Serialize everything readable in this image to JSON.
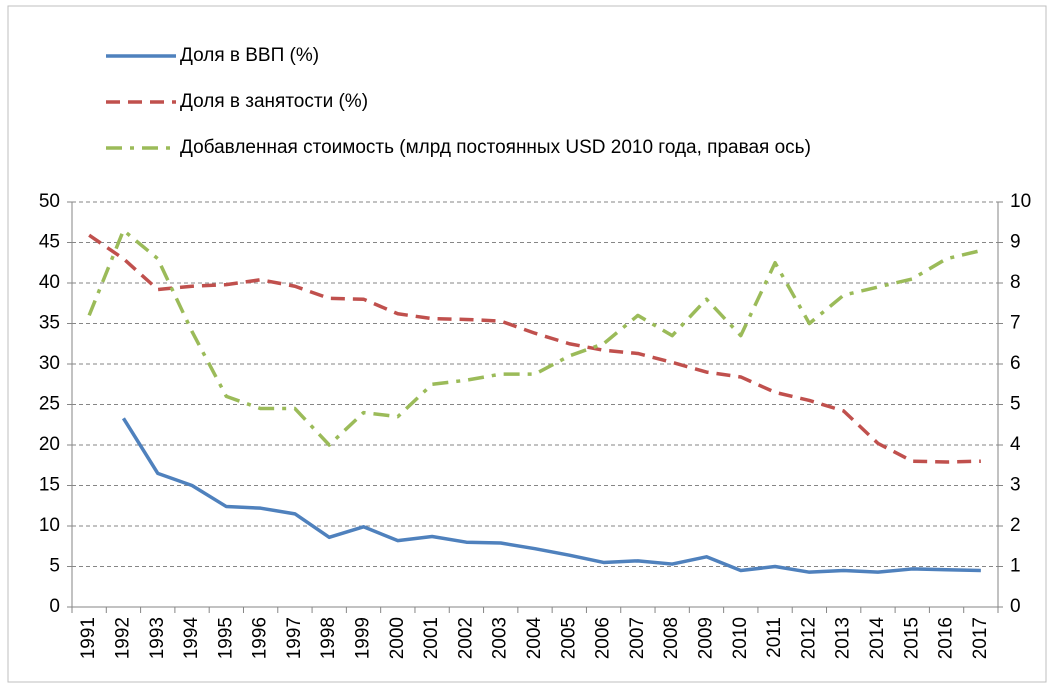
{
  "chart_data": {
    "type": "line",
    "categories": [
      "1991",
      "1992",
      "1993",
      "1994",
      "1995",
      "1996",
      "1997",
      "1998",
      "1999",
      "2000",
      "2001",
      "2002",
      "2003",
      "2004",
      "2005",
      "2006",
      "2007",
      "2008",
      "2009",
      "2010",
      "2011",
      "2012",
      "2013",
      "2014",
      "2015",
      "2016",
      "2017"
    ],
    "series": [
      {
        "name": "Доля в ВВП (%)",
        "color": "#4f81bd",
        "dash": "solid",
        "values": [
          null,
          23.3,
          16.5,
          15.0,
          12.4,
          12.2,
          11.5,
          8.6,
          9.9,
          8.2,
          8.7,
          8.0,
          7.9,
          7.2,
          6.4,
          5.5,
          5.7,
          5.3,
          6.2,
          4.5,
          5.0,
          4.3,
          4.5,
          4.3,
          4.7,
          4.6,
          4.5
        ]
      },
      {
        "name": "Доля в занятости (%)",
        "color": "#c0504d",
        "dash": "dashed",
        "values": [
          45.9,
          43.0,
          39.2,
          39.6,
          39.8,
          40.4,
          39.6,
          38.1,
          38.0,
          36.2,
          35.6,
          35.5,
          35.3,
          33.8,
          32.5,
          31.7,
          31.3,
          30.2,
          29.0,
          28.4,
          26.5,
          25.5,
          24.2,
          20.2,
          18.0,
          17.9,
          18.0
        ]
      },
      {
        "name": "Добавленная стоимость (млрд постоянных USD 2010 года, правая ось)",
        "color": "#9bbb59",
        "dash": "dashdot",
        "axis": "y2",
        "values": [
          7.2,
          9.3,
          8.6,
          6.8,
          5.2,
          4.9,
          4.9,
          4.0,
          4.8,
          4.7,
          5.5,
          5.6,
          5.75,
          5.75,
          6.2,
          6.5,
          7.2,
          6.7,
          7.6,
          6.7,
          8.5,
          7.0,
          7.7,
          7.9,
          8.1,
          8.6,
          8.8
        ]
      }
    ],
    "ylim": [
      0,
      50
    ],
    "yticks": [
      0,
      5,
      10,
      15,
      20,
      25,
      30,
      35,
      40,
      45,
      50
    ],
    "y2lim": [
      0,
      10
    ],
    "y2ticks": [
      0,
      1,
      2,
      3,
      4,
      5,
      6,
      7,
      8,
      9,
      10
    ],
    "grid": true,
    "legend": "top"
  }
}
